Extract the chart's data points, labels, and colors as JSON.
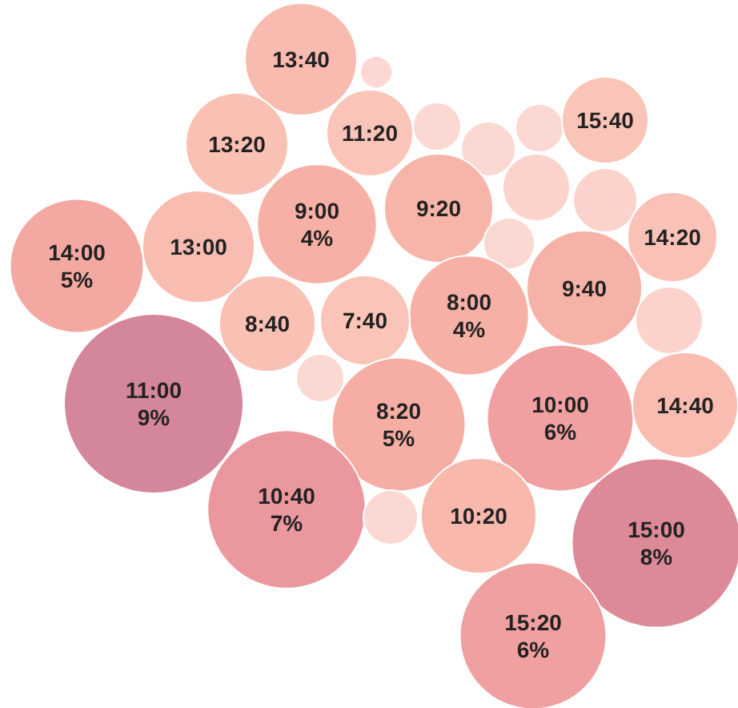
{
  "chart_data": {
    "type": "other",
    "categories": [
      "13:40",
      null,
      "13:20",
      "11:20",
      null,
      null,
      null,
      "15:40",
      "9:00",
      "9:20",
      "13:00",
      null,
      null,
      null,
      "14:20",
      "14:00",
      "9:40",
      "8:00",
      "8:40",
      "7:40",
      null,
      null,
      "11:00",
      "8:20",
      "10:00",
      "14:40",
      "10:40",
      null,
      "10:20",
      "15:00",
      "15:20"
    ],
    "values": [
      null,
      null,
      null,
      null,
      null,
      null,
      null,
      null,
      4,
      null,
      null,
      null,
      null,
      null,
      null,
      5,
      null,
      4,
      null,
      null,
      null,
      null,
      9,
      5,
      6,
      null,
      7,
      null,
      null,
      8,
      6
    ],
    "value_labels": [
      null,
      null,
      null,
      null,
      null,
      null,
      null,
      null,
      "4%",
      null,
      null,
      null,
      null,
      null,
      null,
      "5%",
      null,
      "4%",
      null,
      null,
      null,
      null,
      "9%",
      "5%",
      "6%",
      null,
      "7%",
      null,
      null,
      "8%",
      "6%"
    ],
    "colors": [
      "#f9bab0",
      "#fcd8d2",
      "#f9c0b4",
      "#fac4b8",
      "#fcd8d2",
      "#fcd8d2",
      "#fcd8d2",
      "#fac4b8",
      "#f6b0a6",
      "#f7b4a9",
      "#f8bcb0",
      "#fcd3cc",
      "#fcd3cc",
      "#fcd8d2",
      "#fac2b6",
      "#f3a8a2",
      "#f7b2a8",
      "#f6b0a6",
      "#f9c0b4",
      "#fac4b8",
      "#fcd3cc",
      "#fcd8d2",
      "#d4869a",
      "#f5ada4",
      "#f0a0a0",
      "#f9bcb0",
      "#eb979e",
      "#fcd8d2",
      "#f8b8ac",
      "#dd8a98",
      "#f0a0a0"
    ]
  }
}
